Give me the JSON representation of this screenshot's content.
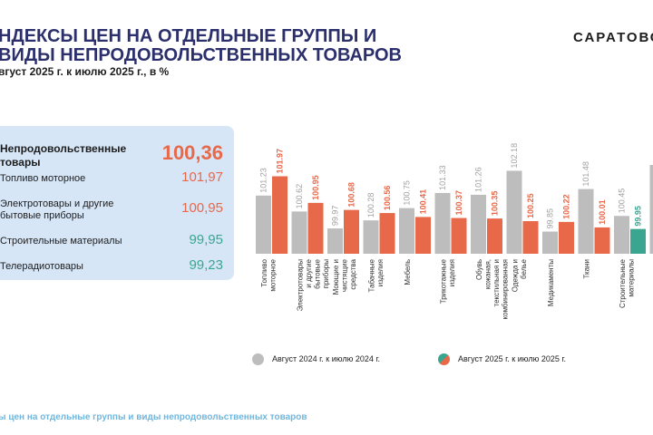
{
  "header": {
    "title": "НДЕКСЫ ЦЕН НА ОТДЕЛЬНЫЕ ГРУППЫ И ВИДЫ НЕПРОДОВОЛЬСТВЕННЫХ ТОВАРОВ",
    "subtitle": "вгуст 2025 г. к июлю 2025 г., в %",
    "brand": "САРАТОВС"
  },
  "summary": {
    "items": [
      {
        "label": "Непродовольственные товары",
        "value": "100,36",
        "color": "#e8684a"
      },
      {
        "label": "Топливо моторное",
        "value": "101,97",
        "color": "#e8684a"
      },
      {
        "label": "Электротовары и другие бытовые приборы",
        "value": "100,95",
        "color": "#e8684a"
      },
      {
        "label": "Строительные материалы",
        "value": "99,95",
        "color": "#3aa68f"
      },
      {
        "label": "Телерадиотовары",
        "value": "99,23",
        "color": "#3aa68f"
      }
    ]
  },
  "legend": {
    "prev_label": "Август  2024 г. к  июлю  2024 г.",
    "curr_label": "Август   2025 г. к июлю  2025 г."
  },
  "footer": {
    "text": "ы цен на отдельные группы и виды непродовольственных товаров"
  },
  "chart_data": {
    "type": "bar",
    "categories": [
      "Топливо моторное",
      "Электротовары и другие бытовые приборы",
      "Моющие и чистящие средства",
      "Табачные изделия",
      "Мебель",
      "Трикотажные изделия",
      "Обувь кожаная, текстильная и комбинированная",
      "Одежда и белье",
      "Медикаменты",
      "Ткани",
      "Строительные материалы",
      ""
    ],
    "series": [
      {
        "name": "Август  2024 г. к  июлю  2024 г.",
        "color": "#bdbdbd",
        "values": [
          101.23,
          100.62,
          99.97,
          100.28,
          100.75,
          101.33,
          101.26,
          102.18,
          99.85,
          101.48,
          100.45,
          null
        ],
        "labels": [
          "101.23",
          "100.62",
          "99.97",
          "100.28",
          "100.75",
          "101.33",
          "101.26",
          "102.18",
          "99.85",
          "101.48",
          "100.45",
          ""
        ]
      },
      {
        "name": "Август   2025 г. к июлю  2025 г.",
        "values": [
          101.97,
          100.95,
          100.68,
          100.56,
          100.41,
          100.37,
          100.35,
          100.25,
          100.22,
          100.01,
          99.95,
          null
        ],
        "labels": [
          "101.97",
          "100.95",
          "100.68",
          "100.56",
          "100.41",
          "100.37",
          "100.35",
          "100.25",
          "100.22",
          "100.01",
          "99.95",
          ""
        ],
        "colors": [
          "#e8684a",
          "#e8684a",
          "#e8684a",
          "#e8684a",
          "#e8684a",
          "#e8684a",
          "#e8684a",
          "#e8684a",
          "#e8684a",
          "#e8684a",
          "#3aa68f",
          "#3aa68f"
        ]
      }
    ],
    "ylim": [
      99,
      102.3
    ],
    "grid": false,
    "legend_position": "bottom",
    "colors": {
      "prev": "#bdbdbd",
      "up": "#e8684a",
      "down": "#3aa68f"
    }
  }
}
